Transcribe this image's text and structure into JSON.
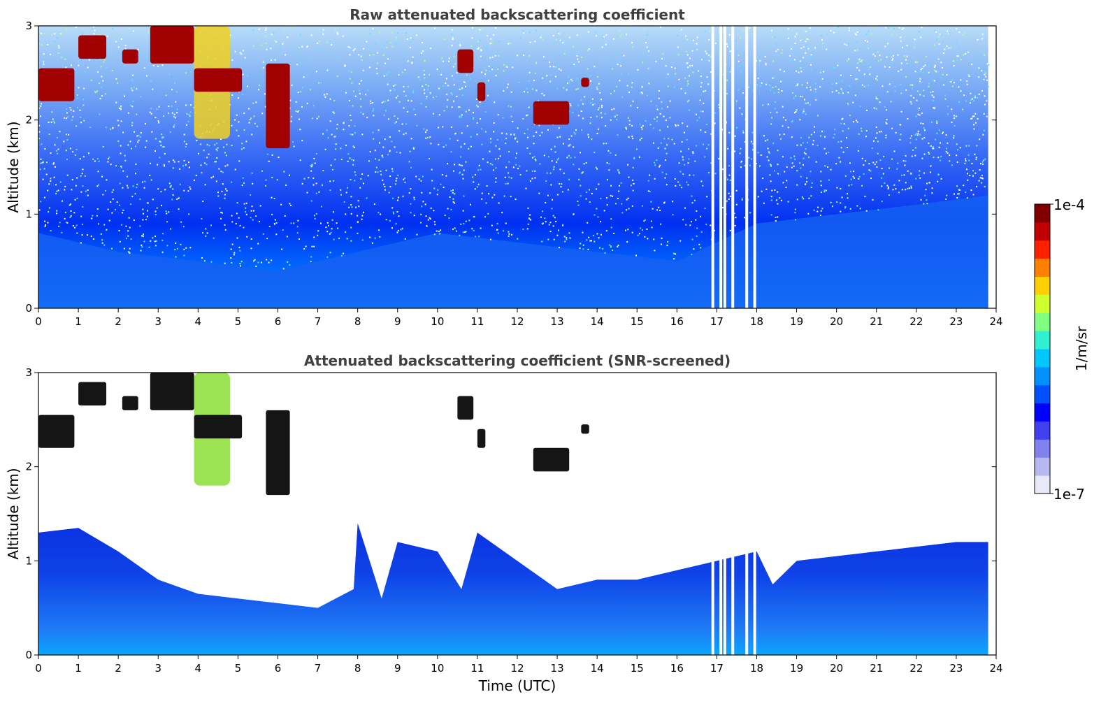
{
  "chart_data": [
    {
      "type": "heatmap",
      "title": "Raw attenuated backscattering coefficient",
      "xlabel": "",
      "ylabel": "Altitude (km)",
      "xlim": [
        0,
        24
      ],
      "ylim": [
        0,
        3
      ],
      "x_ticks": [
        "0",
        "1",
        "2",
        "3",
        "4",
        "5",
        "6",
        "7",
        "8",
        "9",
        "10",
        "11",
        "12",
        "13",
        "14",
        "15",
        "16",
        "17",
        "18",
        "19",
        "20",
        "21",
        "22",
        "23",
        "24"
      ],
      "y_ticks": [
        "0",
        "1",
        "2",
        "3"
      ],
      "data_end_hour": 23.8,
      "gaps_hours": [
        16.9,
        17.1,
        17.2,
        17.4,
        17.75,
        17.95
      ],
      "boundary_layer_top_km": [
        [
          0,
          0.8
        ],
        [
          2,
          0.6
        ],
        [
          4,
          0.5
        ],
        [
          6,
          0.4
        ],
        [
          8,
          0.6
        ],
        [
          10,
          0.8
        ],
        [
          12,
          0.7
        ],
        [
          14,
          0.6
        ],
        [
          16,
          0.5
        ],
        [
          18,
          0.9
        ],
        [
          20,
          1.0
        ],
        [
          22,
          1.1
        ],
        [
          23.8,
          1.2
        ]
      ],
      "cloud_layers": [
        {
          "x": [
            0,
            0.9
          ],
          "y": [
            2.2,
            2.55
          ]
        },
        {
          "x": [
            1.0,
            1.7
          ],
          "y": [
            2.65,
            2.9
          ]
        },
        {
          "x": [
            2.1,
            2.5
          ],
          "y": [
            2.6,
            2.75
          ]
        },
        {
          "x": [
            2.8,
            3.9
          ],
          "y": [
            2.6,
            3.0
          ]
        },
        {
          "x": [
            3.9,
            5.1
          ],
          "y": [
            2.3,
            2.55
          ]
        },
        {
          "x": [
            5.7,
            6.3
          ],
          "y": [
            1.7,
            2.6
          ]
        },
        {
          "x": [
            10.5,
            10.9
          ],
          "y": [
            2.5,
            2.75
          ]
        },
        {
          "x": [
            11.0,
            11.2
          ],
          "y": [
            2.2,
            2.4
          ]
        },
        {
          "x": [
            12.4,
            13.3
          ],
          "y": [
            1.95,
            2.2
          ]
        },
        {
          "x": [
            13.6,
            13.8
          ],
          "y": [
            2.35,
            2.45
          ]
        }
      ],
      "aerosol_plume": {
        "x": [
          3.9,
          4.8
        ],
        "y": [
          1.8,
          3.0
        ]
      }
    },
    {
      "type": "heatmap",
      "title": "Attenuated backscattering coefficient (SNR-screened)",
      "xlabel": "Time (UTC)",
      "ylabel": "Altitude (km)",
      "xlim": [
        0,
        24
      ],
      "ylim": [
        0,
        3
      ],
      "x_ticks": [
        "0",
        "1",
        "2",
        "3",
        "4",
        "5",
        "6",
        "7",
        "8",
        "9",
        "10",
        "11",
        "12",
        "13",
        "14",
        "15",
        "16",
        "17",
        "18",
        "19",
        "20",
        "21",
        "22",
        "23",
        "24"
      ],
      "y_ticks": [
        "0",
        "1",
        "2",
        "3"
      ],
      "data_end_hour": 23.8,
      "gaps_hours": [
        16.9,
        17.1,
        17.2,
        17.4,
        17.75,
        17.95
      ],
      "screened_top_km": [
        [
          0,
          1.3
        ],
        [
          1,
          1.35
        ],
        [
          2,
          1.1
        ],
        [
          3,
          0.8
        ],
        [
          4,
          0.65
        ],
        [
          5,
          0.6
        ],
        [
          6,
          0.55
        ],
        [
          7,
          0.5
        ],
        [
          7.9,
          0.7
        ],
        [
          8,
          1.4
        ],
        [
          8.6,
          0.6
        ],
        [
          9,
          1.2
        ],
        [
          10,
          1.1
        ],
        [
          10.6,
          0.7
        ],
        [
          11,
          1.3
        ],
        [
          12,
          1.0
        ],
        [
          13,
          0.7
        ],
        [
          14,
          0.8
        ],
        [
          15,
          0.8
        ],
        [
          16,
          0.9
        ],
        [
          17,
          1.0
        ],
        [
          18,
          1.1
        ],
        [
          18.4,
          0.75
        ],
        [
          19,
          1.0
        ],
        [
          20,
          1.05
        ],
        [
          21,
          1.1
        ],
        [
          22,
          1.15
        ],
        [
          23,
          1.2
        ],
        [
          23.8,
          1.2
        ]
      ]
    }
  ],
  "colorbar": {
    "label": "1/m/sr",
    "max_label": "1e-4",
    "min_label": "1e-7",
    "colors": [
      "#e8e8f8",
      "#b8b8f0",
      "#8080ee",
      "#4040f0",
      "#0000ff",
      "#0050ff",
      "#0090ff",
      "#00c8ff",
      "#30f0d0",
      "#80ff80",
      "#d0ff30",
      "#ffd000",
      "#ff8000",
      "#ff2000",
      "#c00000",
      "#800000"
    ]
  }
}
